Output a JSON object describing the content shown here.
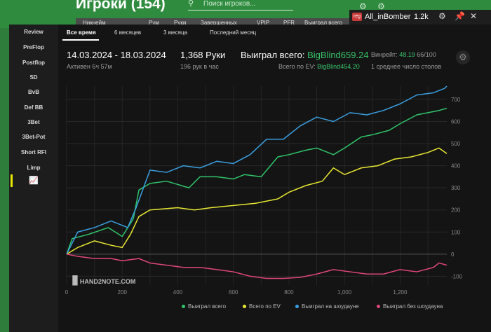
{
  "background": {
    "title": "Игроки (154)",
    "search_placeholder": "Поиск игроков...",
    "table_headers": [
      "Никнейм",
      "Рум",
      "Руки",
      "Завершенных",
      "VPIP",
      "PFR",
      "Выиграл всего"
    ]
  },
  "player_bar": {
    "reg_badge": "reg",
    "name": "All_inBomber",
    "count": "1.2k"
  },
  "sidebar": {
    "items": [
      "Review",
      "PreFlop",
      "Postflop",
      "SD",
      "BvB",
      "Def BB",
      "3Bet",
      "3Bet-Pot",
      "Short RFI",
      "Limp"
    ]
  },
  "tabs": [
    "Все время",
    "6 месяцев",
    "3 месяца",
    "Последний месяц"
  ],
  "stats": {
    "date_range": "14.03.2024 - 18.03.2024",
    "active": "Активен 6ч 57м",
    "hands": "1,368 Руки",
    "hands_per_hour": "196 рук в час",
    "won_total_label": "Выиграл всего:",
    "won_total_value": "BigBlind659.24",
    "winrate_label": "Винрейт:",
    "winrate_value": "48.19",
    "winrate_unit": "66/100",
    "ev_label": "Всего по EV:",
    "ev_value": "BigBlind454.20",
    "tables": "1 среднее число столов"
  },
  "logo": "HAND2NOTE.COM",
  "chart_data": {
    "type": "line",
    "x_ticks": [
      "0",
      "200",
      "400",
      "600",
      "800",
      "1,000",
      "1,200"
    ],
    "y_ticks": [
      "700",
      "600",
      "500",
      "400",
      "300",
      "200",
      "100",
      "0",
      "-100"
    ],
    "xlim": [
      0,
      1368
    ],
    "ylim": [
      -140,
      760
    ],
    "series": [
      {
        "name": "Выиграл всего",
        "color": "#2fc46a",
        "x": [
          0,
          20,
          80,
          150,
          200,
          240,
          260,
          300,
          360,
          440,
          480,
          540,
          600,
          640,
          700,
          760,
          800,
          860,
          900,
          960,
          1000,
          1060,
          1100,
          1160,
          1200,
          1260,
          1300,
          1340,
          1368
        ],
        "y": [
          0,
          70,
          90,
          120,
          80,
          160,
          290,
          320,
          330,
          300,
          350,
          350,
          340,
          360,
          350,
          440,
          450,
          470,
          480,
          450,
          480,
          530,
          540,
          560,
          590,
          630,
          640,
          650,
          660
        ]
      },
      {
        "name": "Всего по EV",
        "color": "#e8e832",
        "x": [
          0,
          40,
          100,
          160,
          200,
          230,
          260,
          300,
          400,
          460,
          520,
          600,
          680,
          760,
          800,
          860,
          920,
          960,
          1000,
          1060,
          1120,
          1180,
          1240,
          1300,
          1340,
          1368
        ],
        "y": [
          0,
          30,
          60,
          40,
          30,
          90,
          170,
          200,
          210,
          200,
          210,
          220,
          230,
          250,
          280,
          310,
          330,
          390,
          360,
          390,
          400,
          430,
          440,
          460,
          480,
          455
        ]
      },
      {
        "name": "Выиграл на шоудауне",
        "color": "#3a9fe0",
        "x": [
          0,
          40,
          100,
          160,
          220,
          250,
          300,
          360,
          420,
          480,
          540,
          600,
          660,
          720,
          780,
          840,
          900,
          960,
          1020,
          1080,
          1140,
          1200,
          1260,
          1320,
          1360,
          1368
        ],
        "y": [
          0,
          100,
          120,
          150,
          120,
          210,
          380,
          370,
          400,
          390,
          420,
          410,
          450,
          520,
          520,
          580,
          620,
          600,
          640,
          630,
          650,
          680,
          720,
          730,
          750,
          760
        ]
      },
      {
        "name": "Выиграл без шоудауна",
        "color": "#e0467a",
        "x": [
          0,
          40,
          100,
          160,
          200,
          260,
          300,
          360,
          420,
          480,
          540,
          600,
          660,
          720,
          780,
          840,
          900,
          960,
          1020,
          1080,
          1140,
          1200,
          1260,
          1320,
          1340,
          1368
        ],
        "y": [
          0,
          -10,
          -20,
          -20,
          -30,
          -20,
          -40,
          -50,
          -60,
          -60,
          -70,
          -80,
          -100,
          -110,
          -110,
          -105,
          -90,
          -70,
          -80,
          -90,
          -90,
          -70,
          -80,
          -60,
          -40,
          -50
        ]
      }
    ]
  }
}
